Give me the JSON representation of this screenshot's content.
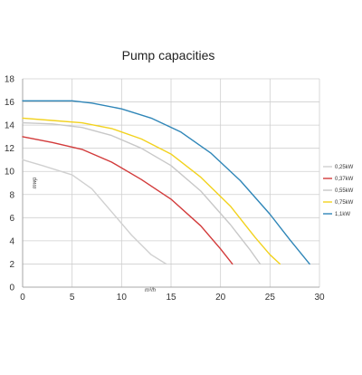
{
  "chart_data": {
    "type": "line",
    "title": "Pump capacities",
    "xlabel": "m³/h",
    "ylabel": "mwp",
    "xlim": [
      0,
      30
    ],
    "ylim": [
      0,
      18
    ],
    "x_ticks": [
      0,
      5,
      10,
      15,
      20,
      25,
      30
    ],
    "y_ticks": [
      0,
      2,
      4,
      6,
      8,
      10,
      12,
      14,
      16,
      18
    ],
    "grid": true,
    "legend_position": "right",
    "series": [
      {
        "name": "0,25kW",
        "color": "#d0d0d0",
        "points": [
          [
            0,
            11
          ],
          [
            2,
            10.5
          ],
          [
            5,
            9.7
          ],
          [
            7,
            8.5
          ],
          [
            9,
            6.5
          ],
          [
            11,
            4.5
          ],
          [
            13,
            2.8
          ],
          [
            14.5,
            2
          ]
        ]
      },
      {
        "name": "0,37kW",
        "color": "#d23a3a",
        "points": [
          [
            0,
            13
          ],
          [
            3,
            12.5
          ],
          [
            6,
            11.9
          ],
          [
            9,
            10.8
          ],
          [
            12,
            9.3
          ],
          [
            15,
            7.6
          ],
          [
            18,
            5.3
          ],
          [
            20,
            3.3
          ],
          [
            21.2,
            2
          ]
        ]
      },
      {
        "name": "0,55kW",
        "color": "#c8c8c8",
        "points": [
          [
            0,
            14.2
          ],
          [
            3,
            14.1
          ],
          [
            6,
            13.8
          ],
          [
            9,
            13.1
          ],
          [
            12,
            12.0
          ],
          [
            15,
            10.5
          ],
          [
            18,
            8.3
          ],
          [
            21,
            5.4
          ],
          [
            23,
            3.2
          ],
          [
            24,
            2
          ]
        ]
      },
      {
        "name": "0,75kW",
        "color": "#f2d21e",
        "points": [
          [
            0,
            14.6
          ],
          [
            3,
            14.4
          ],
          [
            6,
            14.2
          ],
          [
            9,
            13.7
          ],
          [
            12,
            12.8
          ],
          [
            15,
            11.5
          ],
          [
            18,
            9.5
          ],
          [
            21,
            7.0
          ],
          [
            23.5,
            4.3
          ],
          [
            25,
            2.8
          ],
          [
            26,
            2
          ]
        ]
      },
      {
        "name": "1,1kW",
        "color": "#2f86b8",
        "points": [
          [
            0,
            16.1
          ],
          [
            3,
            16.1
          ],
          [
            5,
            16.1
          ],
          [
            7,
            15.9
          ],
          [
            10,
            15.4
          ],
          [
            13,
            14.6
          ],
          [
            16,
            13.4
          ],
          [
            19,
            11.6
          ],
          [
            22,
            9.2
          ],
          [
            25,
            6.3
          ],
          [
            27,
            4.1
          ],
          [
            29,
            2
          ]
        ]
      }
    ]
  }
}
